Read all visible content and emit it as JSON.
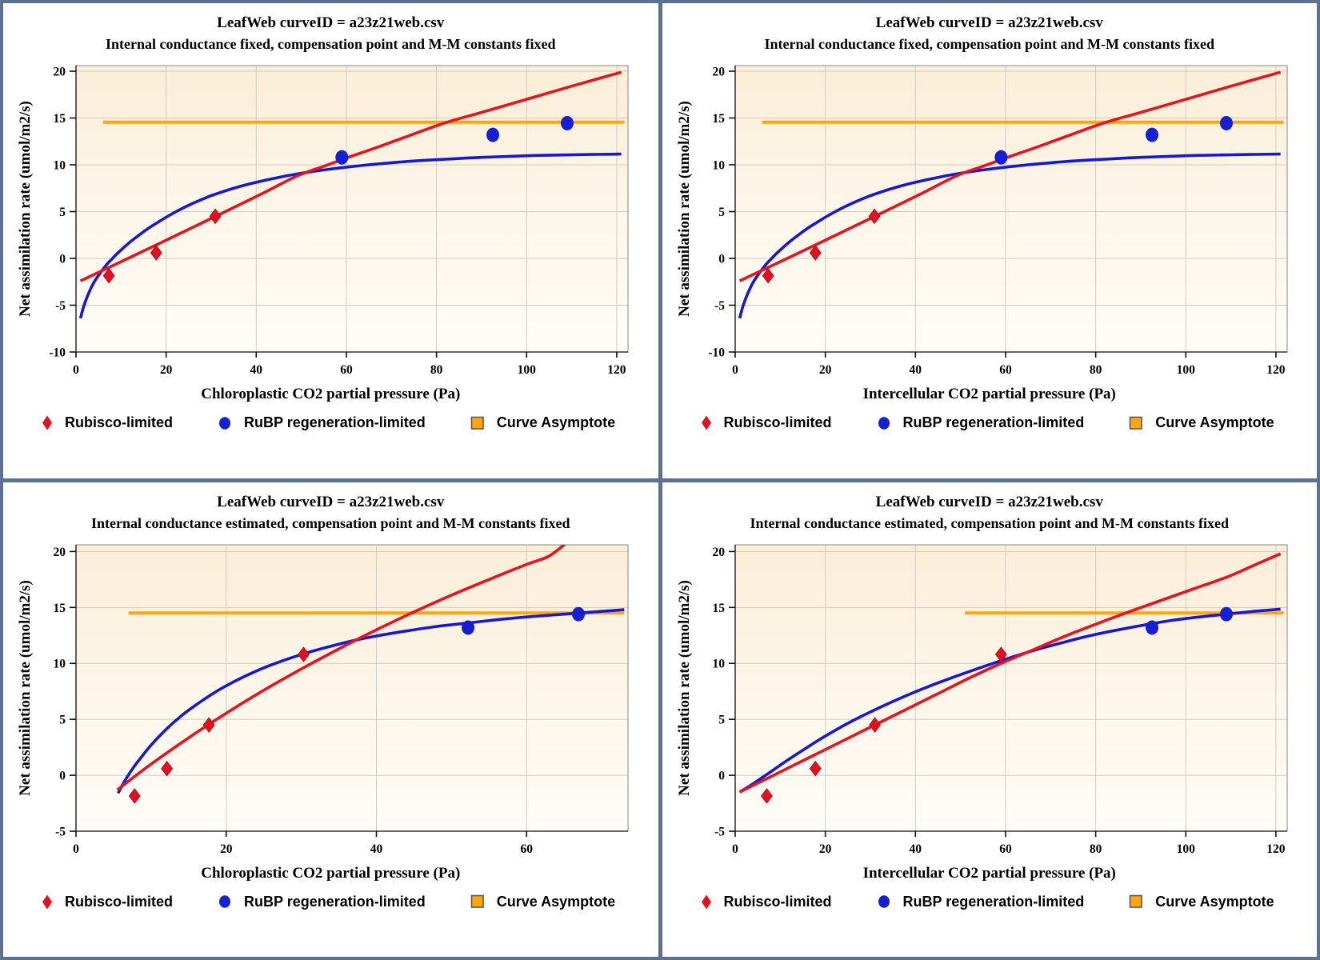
{
  "colors": {
    "rubisco_red": "#e8131d",
    "rubp_blue": "#1717d6",
    "asymptote_orange": "#ffa510",
    "panel_border": "#5d7292",
    "gridline": "#cfccc4",
    "plot_bg_top": "#fbeed8",
    "plot_bg_bottom": "#fffdf8"
  },
  "legend": {
    "items": [
      {
        "label": "Rubisco-limited",
        "marker": "diamond",
        "color": "#e3101f"
      },
      {
        "label": "RuBP regeneration-limited",
        "marker": "circle",
        "color": "#1520d2"
      },
      {
        "label": "Curve Asymptote",
        "marker": "square",
        "color": "#ffa510"
      }
    ]
  },
  "chart_data": [
    {
      "type": "scatter+line",
      "title": "LeafWeb curveID = a23z21web.csv",
      "subtitle": "Internal conductance fixed, compensation point and M-M constants fixed",
      "xlabel": "Chloroplastic CO2 partial pressure (Pa)",
      "ylabel": "Net assimilation rate (umol/m2/s)",
      "xlim": [
        0,
        122.5
      ],
      "ylim": [
        -10,
        20.6
      ],
      "xticks": [
        0,
        20,
        40,
        60,
        80,
        100,
        120
      ],
      "yticks": [
        -10,
        -5,
        0,
        5,
        10,
        15,
        20
      ],
      "asymptote": {
        "y": 14.55,
        "x_start": 6,
        "x_end": 121.7
      },
      "rubisco_points": [
        [
          7.3,
          -1.85
        ],
        [
          17.8,
          0.6
        ],
        [
          30.9,
          4.5
        ]
      ],
      "rubp_points": [
        [
          59,
          10.8
        ],
        [
          92.5,
          13.2
        ],
        [
          109,
          14.45
        ]
      ],
      "rubisco_curve": [
        [
          1,
          -2.4
        ],
        [
          10,
          -0.35
        ],
        [
          20,
          1.95
        ],
        [
          31,
          4.5
        ],
        [
          41,
          6.85
        ],
        [
          49,
          8.8
        ],
        [
          55,
          9.85
        ],
        [
          61,
          10.9
        ],
        [
          67,
          11.9
        ],
        [
          73,
          12.95
        ],
        [
          82,
          14.5
        ],
        [
          90,
          15.6
        ],
        [
          100,
          17.0
        ],
        [
          110,
          18.4
        ],
        [
          121,
          19.9
        ]
      ],
      "rubp_curve": [
        [
          1,
          -6.4
        ],
        [
          1.6,
          -5.3
        ],
        [
          2.4,
          -4.2
        ],
        [
          3.2,
          -3.3
        ],
        [
          4,
          -2.55
        ],
        [
          5,
          -1.8
        ],
        [
          6,
          -1.15
        ],
        [
          7,
          -0.55
        ],
        [
          8,
          -0.05
        ],
        [
          9,
          0.45
        ],
        [
          10,
          0.9
        ],
        [
          12,
          1.75
        ],
        [
          14,
          2.5
        ],
        [
          16,
          3.2
        ],
        [
          18,
          3.8
        ],
        [
          20,
          4.4
        ],
        [
          23,
          5.2
        ],
        [
          26,
          5.9
        ],
        [
          30,
          6.7
        ],
        [
          34,
          7.35
        ],
        [
          38,
          7.9
        ],
        [
          42,
          8.35
        ],
        [
          46,
          8.75
        ],
        [
          50,
          9.1
        ],
        [
          55,
          9.45
        ],
        [
          60,
          9.75
        ],
        [
          66,
          10.05
        ],
        [
          72,
          10.3
        ],
        [
          78,
          10.5
        ],
        [
          84,
          10.65
        ],
        [
          90,
          10.8
        ],
        [
          96,
          10.9
        ],
        [
          102,
          11.0
        ],
        [
          108,
          11.05
        ],
        [
          114,
          11.1
        ],
        [
          121,
          11.15
        ]
      ]
    },
    {
      "type": "scatter+line",
      "title": "LeafWeb curveID = a23z21web.csv",
      "subtitle": "Internal conductance fixed, compensation point and M-M constants fixed",
      "xlabel": "Intercellular CO2 partial pressure (Pa)",
      "ylabel": "Net assimilation rate (umol/m2/s)",
      "xlim": [
        0,
        122.5
      ],
      "ylim": [
        -10,
        20.6
      ],
      "xticks": [
        0,
        20,
        40,
        60,
        80,
        100,
        120
      ],
      "yticks": [
        -10,
        -5,
        0,
        5,
        10,
        15,
        20
      ],
      "asymptote": {
        "y": 14.55,
        "x_start": 6,
        "x_end": 121.7
      },
      "rubisco_points": [
        [
          7.3,
          -1.85
        ],
        [
          17.8,
          0.6
        ],
        [
          30.9,
          4.5
        ]
      ],
      "rubp_points": [
        [
          59,
          10.8
        ],
        [
          92.5,
          13.2
        ],
        [
          109,
          14.45
        ]
      ],
      "rubisco_curve": [
        [
          1,
          -2.4
        ],
        [
          10,
          -0.35
        ],
        [
          20,
          1.95
        ],
        [
          31,
          4.5
        ],
        [
          41,
          6.85
        ],
        [
          49,
          8.8
        ],
        [
          55,
          9.85
        ],
        [
          61,
          10.9
        ],
        [
          67,
          11.9
        ],
        [
          73,
          12.95
        ],
        [
          82,
          14.5
        ],
        [
          90,
          15.6
        ],
        [
          100,
          17.0
        ],
        [
          110,
          18.4
        ],
        [
          121,
          19.9
        ]
      ],
      "rubp_curve": [
        [
          1,
          -6.4
        ],
        [
          1.6,
          -5.3
        ],
        [
          2.4,
          -4.2
        ],
        [
          3.2,
          -3.3
        ],
        [
          4,
          -2.55
        ],
        [
          5,
          -1.8
        ],
        [
          6,
          -1.15
        ],
        [
          7,
          -0.55
        ],
        [
          8,
          -0.05
        ],
        [
          9,
          0.45
        ],
        [
          10,
          0.9
        ],
        [
          12,
          1.75
        ],
        [
          14,
          2.5
        ],
        [
          16,
          3.2
        ],
        [
          18,
          3.8
        ],
        [
          20,
          4.4
        ],
        [
          23,
          5.2
        ],
        [
          26,
          5.9
        ],
        [
          30,
          6.7
        ],
        [
          34,
          7.35
        ],
        [
          38,
          7.9
        ],
        [
          42,
          8.35
        ],
        [
          46,
          8.75
        ],
        [
          50,
          9.1
        ],
        [
          55,
          9.45
        ],
        [
          60,
          9.75
        ],
        [
          66,
          10.05
        ],
        [
          72,
          10.3
        ],
        [
          78,
          10.5
        ],
        [
          84,
          10.65
        ],
        [
          90,
          10.8
        ],
        [
          96,
          10.9
        ],
        [
          102,
          11.0
        ],
        [
          108,
          11.05
        ],
        [
          114,
          11.1
        ],
        [
          121,
          11.15
        ]
      ]
    },
    {
      "type": "scatter+line",
      "title": "LeafWeb curveID = a23z21web.csv",
      "subtitle": "Internal conductance estimated, compensation point and M-M constants fixed",
      "xlabel": "Chloroplastic CO2 partial pressure (Pa)",
      "ylabel": "Net assimilation rate (umol/m2/s)",
      "xlim": [
        0,
        73.5
      ],
      "ylim": [
        -5,
        20.6
      ],
      "xticks": [
        0,
        20,
        40,
        60
      ],
      "yticks": [
        -5,
        0,
        5,
        10,
        15,
        20
      ],
      "asymptote": {
        "y": 14.5,
        "x_start": 7,
        "x_end": 73
      },
      "rubisco_points": [
        [
          7.8,
          -1.85
        ],
        [
          12.1,
          0.6
        ],
        [
          17.7,
          4.5
        ],
        [
          30.3,
          10.8
        ]
      ],
      "rubp_points": [
        [
          52.2,
          13.2
        ],
        [
          66.9,
          14.4
        ]
      ],
      "rubisco_curve": [
        [
          5.5,
          -1.3
        ],
        [
          10,
          1.0
        ],
        [
          15,
          3.35
        ],
        [
          20,
          5.55
        ],
        [
          25,
          7.6
        ],
        [
          30,
          9.5
        ],
        [
          35,
          11.3
        ],
        [
          40,
          13.0
        ],
        [
          45,
          14.6
        ],
        [
          50,
          16.1
        ],
        [
          55,
          17.5
        ],
        [
          60,
          18.85
        ],
        [
          63,
          19.6
        ],
        [
          65.5,
          20.9
        ]
      ],
      "rubp_curve": [
        [
          5.6,
          -1.6
        ],
        [
          6.5,
          -0.5
        ],
        [
          7.5,
          0.55
        ],
        [
          8.5,
          1.45
        ],
        [
          10,
          2.7
        ],
        [
          12,
          4.1
        ],
        [
          14,
          5.3
        ],
        [
          16,
          6.3
        ],
        [
          18,
          7.2
        ],
        [
          20,
          8.0
        ],
        [
          22.5,
          8.85
        ],
        [
          25,
          9.6
        ],
        [
          28,
          10.35
        ],
        [
          31,
          11.0
        ],
        [
          34,
          11.55
        ],
        [
          37,
          12.05
        ],
        [
          40,
          12.45
        ],
        [
          44,
          12.9
        ],
        [
          48,
          13.3
        ],
        [
          52,
          13.6
        ],
        [
          56,
          13.9
        ],
        [
          60,
          14.15
        ],
        [
          63,
          14.3
        ],
        [
          67,
          14.5
        ],
        [
          70,
          14.65
        ],
        [
          73,
          14.8
        ]
      ]
    },
    {
      "type": "scatter+line",
      "title": "LeafWeb curveID = a23z21web.csv",
      "subtitle": "Internal conductance estimated, compensation point and M-M constants fixed",
      "xlabel": "Intercellular CO2 partial pressure (Pa)",
      "ylabel": "Net assimilation rate (umol/m2/s)",
      "xlim": [
        0,
        122.5
      ],
      "ylim": [
        -5,
        20.6
      ],
      "xticks": [
        0,
        20,
        40,
        60,
        80,
        100,
        120
      ],
      "yticks": [
        -5,
        0,
        5,
        10,
        15,
        20
      ],
      "asymptote": {
        "y": 14.5,
        "x_start": 51,
        "x_end": 121.7
      },
      "rubisco_points": [
        [
          7,
          -1.85
        ],
        [
          17.8,
          0.6
        ],
        [
          31,
          4.5
        ],
        [
          59,
          10.8
        ]
      ],
      "rubp_points": [
        [
          92.5,
          13.2
        ],
        [
          109,
          14.4
        ]
      ],
      "rubisco_curve": [
        [
          1,
          -1.5
        ],
        [
          6,
          -0.5
        ],
        [
          12,
          0.7
        ],
        [
          18,
          1.9
        ],
        [
          24,
          3.1
        ],
        [
          31,
          4.5
        ],
        [
          38,
          5.9
        ],
        [
          45,
          7.3
        ],
        [
          52,
          8.7
        ],
        [
          59,
          10.0
        ],
        [
          66,
          11.2
        ],
        [
          73,
          12.4
        ],
        [
          80,
          13.5
        ],
        [
          88,
          14.7
        ],
        [
          95,
          15.7
        ],
        [
          102,
          16.7
        ],
        [
          109,
          17.7
        ],
        [
          115,
          18.75
        ],
        [
          121,
          19.8
        ]
      ],
      "rubp_curve": [
        [
          1,
          -1.5
        ],
        [
          4,
          -0.75
        ],
        [
          8,
          0.35
        ],
        [
          12,
          1.45
        ],
        [
          16,
          2.5
        ],
        [
          20,
          3.5
        ],
        [
          25,
          4.65
        ],
        [
          31,
          5.85
        ],
        [
          37,
          6.95
        ],
        [
          43,
          7.95
        ],
        [
          49,
          8.85
        ],
        [
          55,
          9.7
        ],
        [
          61,
          10.5
        ],
        [
          67,
          11.25
        ],
        [
          73,
          11.9
        ],
        [
          79,
          12.5
        ],
        [
          85,
          13.0
        ],
        [
          91,
          13.45
        ],
        [
          97,
          13.85
        ],
        [
          103,
          14.15
        ],
        [
          109,
          14.4
        ],
        [
          115,
          14.65
        ],
        [
          121,
          14.85
        ]
      ]
    }
  ]
}
